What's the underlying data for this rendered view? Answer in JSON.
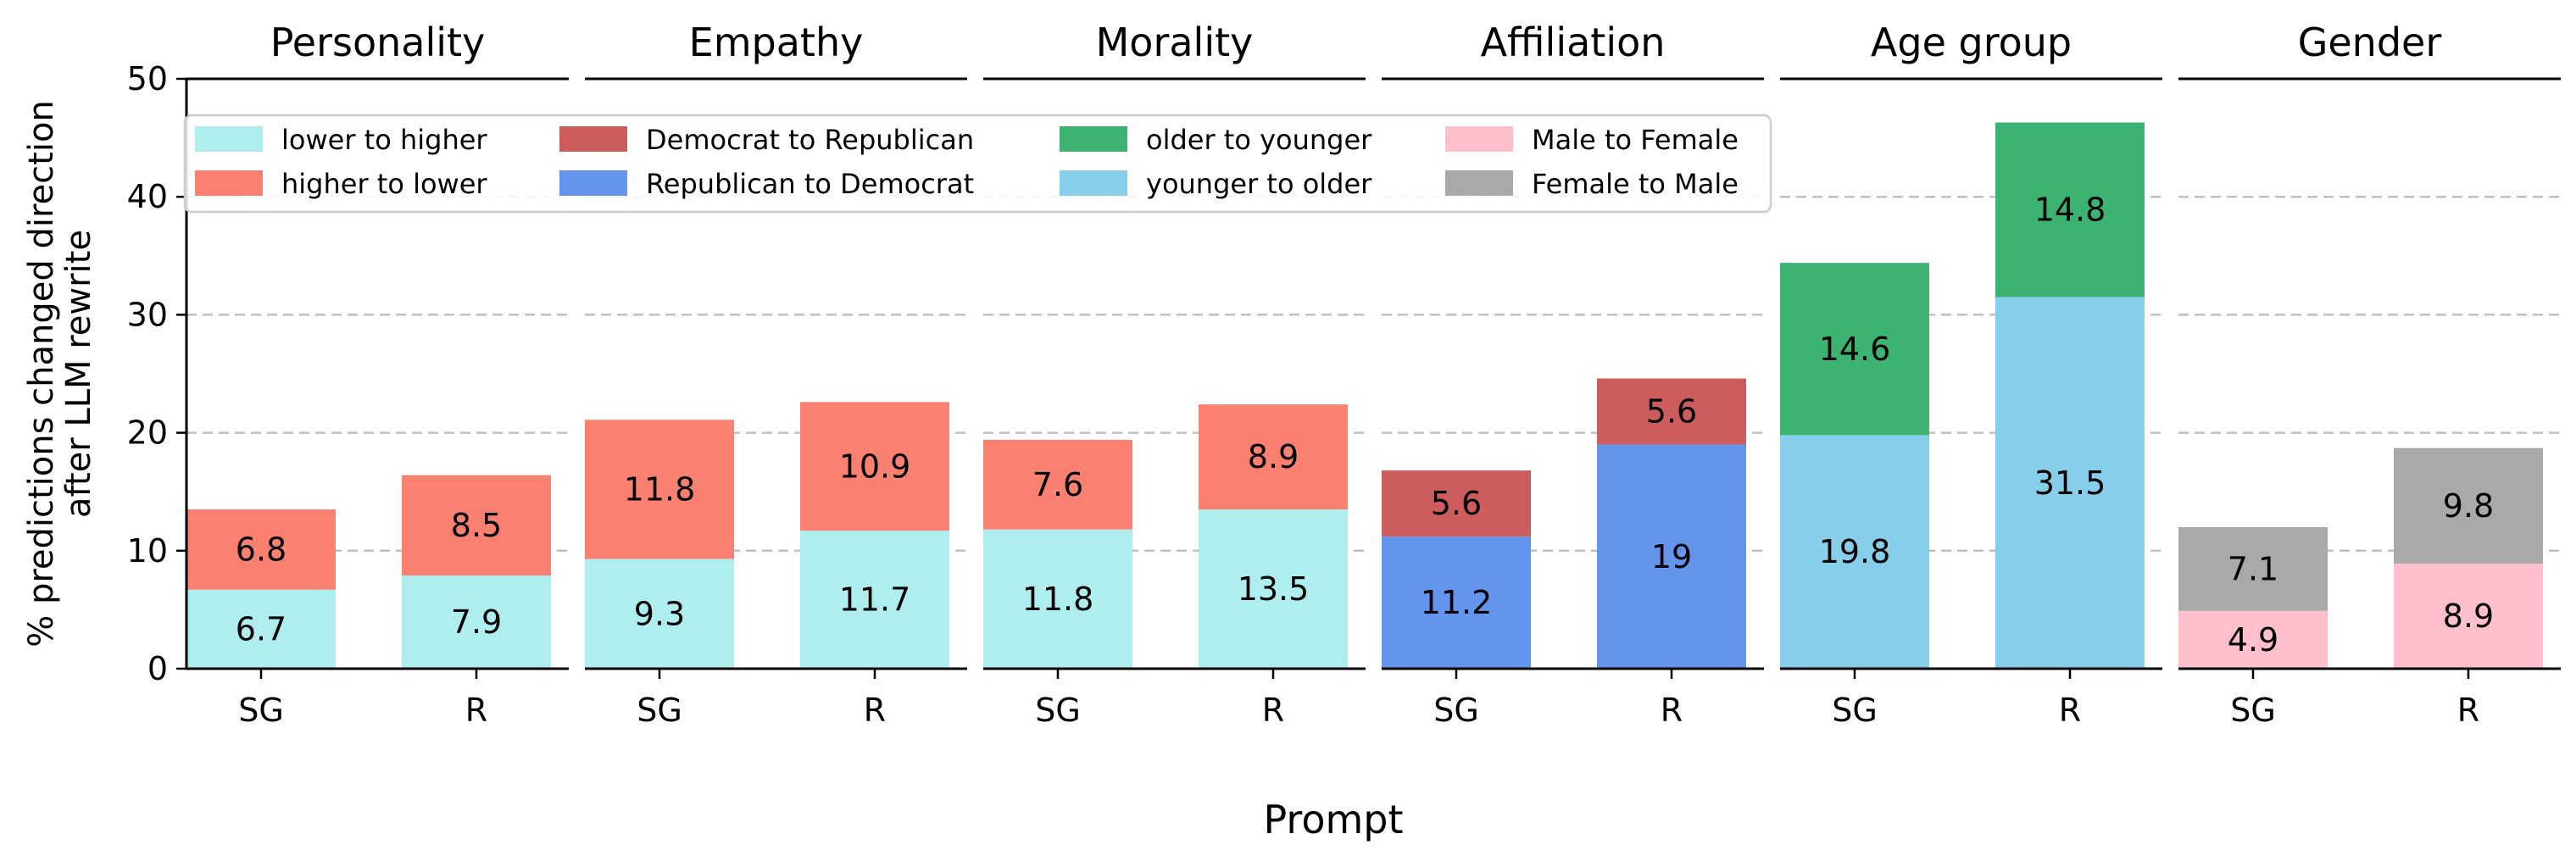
{
  "chart_data": {
    "type": "bar",
    "stacked": true,
    "ylabel": "% predictions changed direction after LLM rewrite",
    "ylabel_lines": [
      "% predictions changed direction",
      "after LLM rewrite"
    ],
    "xlabel": "Prompt",
    "ylim": [
      0,
      50
    ],
    "yticks": [
      0,
      10,
      20,
      30,
      40,
      50
    ],
    "grid": "horizontal dashed",
    "legend_position": "top-left",
    "categories": [
      "SG",
      "R"
    ],
    "legend": [
      {
        "label": "lower to higher",
        "color": "#afeeee"
      },
      {
        "label": "higher to lower",
        "color": "#fa8072"
      },
      {
        "label": "Democrat to Republican",
        "color": "#cd5c5c"
      },
      {
        "label": "Republican to Democrat",
        "color": "#6495ed"
      },
      {
        "label": "older to younger",
        "color": "#3cb371"
      },
      {
        "label": "younger to older",
        "color": "#87ceeb"
      },
      {
        "label": "Male to Female",
        "color": "#ffc0cb"
      },
      {
        "label": "Female to Male",
        "color": "#a9a9a9"
      }
    ],
    "panels": [
      {
        "title": "Personality",
        "series": [
          {
            "name": "lower to higher",
            "color": "#afeeee",
            "values": [
              6.7,
              7.9
            ]
          },
          {
            "name": "higher to lower",
            "color": "#fa8072",
            "values": [
              6.8,
              8.5
            ]
          }
        ]
      },
      {
        "title": "Empathy",
        "series": [
          {
            "name": "lower to higher",
            "color": "#afeeee",
            "values": [
              9.3,
              11.7
            ]
          },
          {
            "name": "higher to lower",
            "color": "#fa8072",
            "values": [
              11.8,
              10.9
            ]
          }
        ]
      },
      {
        "title": "Morality",
        "series": [
          {
            "name": "lower to higher",
            "color": "#afeeee",
            "values": [
              11.8,
              13.5
            ]
          },
          {
            "name": "higher to lower",
            "color": "#fa8072",
            "values": [
              7.6,
              8.9
            ]
          }
        ]
      },
      {
        "title": "Affiliation",
        "series": [
          {
            "name": "Republican to Democrat",
            "color": "#6495ed",
            "values": [
              11.2,
              19
            ]
          },
          {
            "name": "Democrat to Republican",
            "color": "#cd5c5c",
            "values": [
              5.6,
              5.6
            ]
          }
        ]
      },
      {
        "title": "Age group",
        "series": [
          {
            "name": "younger to older",
            "color": "#87ceeb",
            "values": [
              19.8,
              31.5
            ]
          },
          {
            "name": "older to younger",
            "color": "#3cb371",
            "values": [
              14.6,
              14.8
            ]
          }
        ]
      },
      {
        "title": "Gender",
        "series": [
          {
            "name": "Male to Female",
            "color": "#ffc0cb",
            "values": [
              4.9,
              8.9
            ]
          },
          {
            "name": "Female to Male",
            "color": "#a9a9a9",
            "values": [
              7.1,
              9.8
            ]
          }
        ]
      }
    ]
  }
}
